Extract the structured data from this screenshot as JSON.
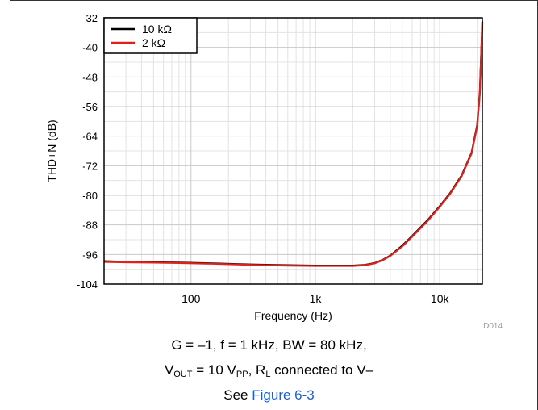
{
  "chart_data": {
    "type": "line",
    "title": "",
    "xlabel": "Frequency (Hz)",
    "ylabel": "THD+N (dB)",
    "xscale": "log",
    "xlim": [
      20,
      22000
    ],
    "ylim": [
      -104,
      -32
    ],
    "yticks": [
      -32,
      -40,
      -48,
      -56,
      -64,
      -72,
      -80,
      -88,
      -96,
      -104
    ],
    "xticks": [
      {
        "value": 100,
        "label": "100"
      },
      {
        "value": 1000,
        "label": "1k"
      },
      {
        "value": 10000,
        "label": "10k"
      }
    ],
    "grid": true,
    "legend": "top-left",
    "figure_id": "D014",
    "series": [
      {
        "name": "10 kΩ",
        "color": "#000000",
        "points": [
          [
            20,
            -97.8
          ],
          [
            30,
            -98.0
          ],
          [
            50,
            -98.1
          ],
          [
            80,
            -98.2
          ],
          [
            150,
            -98.4
          ],
          [
            300,
            -98.7
          ],
          [
            600,
            -98.9
          ],
          [
            1000,
            -99.0
          ],
          [
            2000,
            -99.0
          ],
          [
            2500,
            -98.8
          ],
          [
            3000,
            -98.3
          ],
          [
            3500,
            -97.4
          ],
          [
            4000,
            -96.3
          ],
          [
            5000,
            -93.6
          ],
          [
            6000,
            -91.0
          ],
          [
            8000,
            -86.7
          ],
          [
            10000,
            -82.9
          ],
          [
            12000,
            -79.6
          ],
          [
            15000,
            -74.6
          ],
          [
            18000,
            -68.5
          ],
          [
            20000,
            -61.0
          ],
          [
            21000,
            -52.0
          ],
          [
            22000,
            -33.0
          ]
        ]
      },
      {
        "name": "2 kΩ",
        "color": "#e0201b",
        "points": [
          [
            20,
            -98.0
          ],
          [
            30,
            -98.1
          ],
          [
            50,
            -98.2
          ],
          [
            80,
            -98.3
          ],
          [
            150,
            -98.5
          ],
          [
            300,
            -98.8
          ],
          [
            600,
            -99.0
          ],
          [
            1000,
            -99.1
          ],
          [
            2000,
            -99.1
          ],
          [
            2500,
            -98.9
          ],
          [
            3000,
            -98.4
          ],
          [
            3500,
            -97.5
          ],
          [
            4000,
            -96.4
          ],
          [
            5000,
            -93.8
          ],
          [
            6000,
            -91.2
          ],
          [
            8000,
            -86.9
          ],
          [
            10000,
            -83.1
          ],
          [
            12000,
            -79.8
          ],
          [
            15000,
            -74.8
          ],
          [
            18000,
            -68.7
          ],
          [
            20000,
            -61.3
          ],
          [
            21000,
            -52.3
          ],
          [
            22000,
            -33.4
          ]
        ]
      }
    ]
  },
  "caption": {
    "line1": "G = –1, f = 1 kHz, BW = 80 kHz,",
    "line2_a": "V",
    "line2_sub_a": "OUT",
    "line2_b": " = 10 V",
    "line2_sub_b": "PP",
    "line2_c": ", R",
    "line2_sub_c": "L",
    "line2_d": " connected to V–",
    "line3_a": "See ",
    "line3_link": "Figure 6-3"
  }
}
